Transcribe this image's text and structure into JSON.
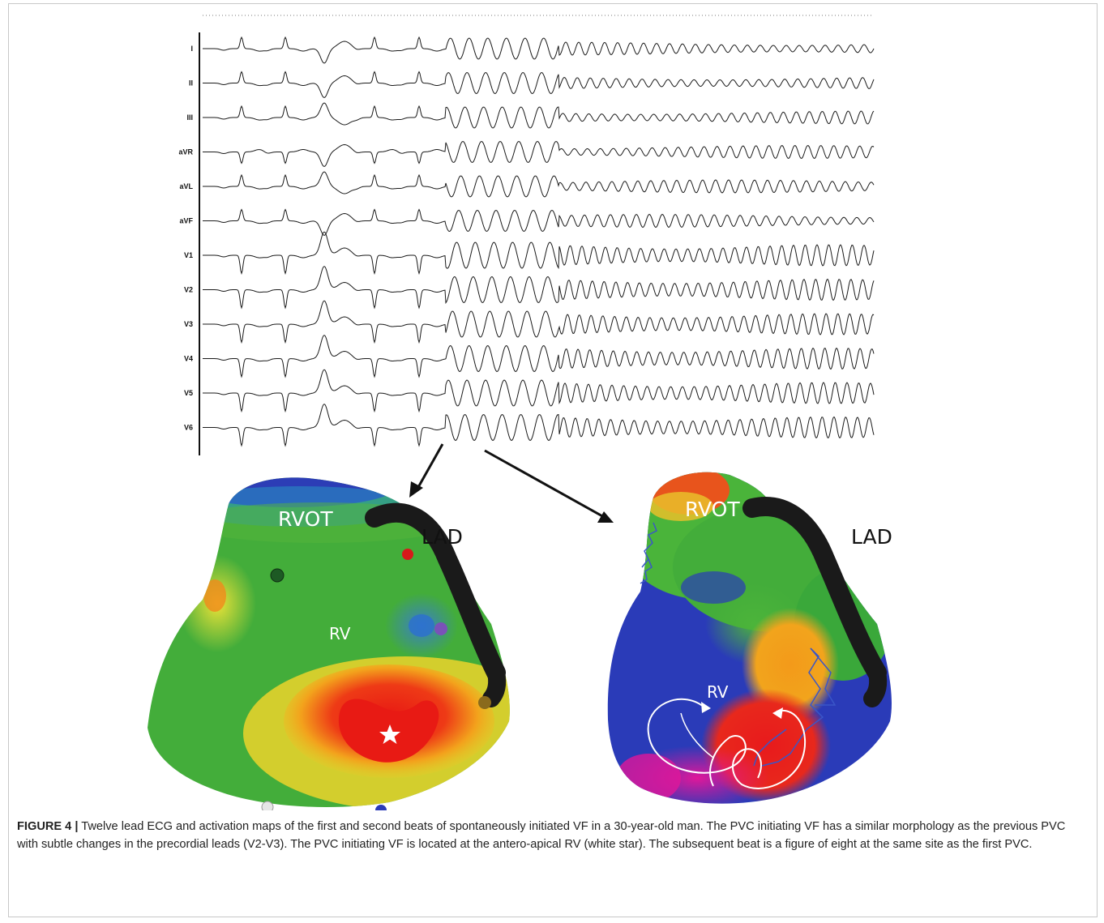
{
  "figure": {
    "caption_label": "FIGURE 4 |",
    "caption_text": " Twelve lead ECG and activation maps of the first and second beats of spontaneously initiated VF in a 30-year-old man. The PVC initiating VF has a similar morphology as the previous PVC with subtle changes in the precordial leads (V2-V3). The PVC initiating VF is located at the antero-apical RV (white star). The subsequent beat is a figure of eight at the same site as the first PVC."
  },
  "ecg": {
    "leads": [
      "I",
      "II",
      "III",
      "aVR",
      "aVL",
      "aVF",
      "V1",
      "V2",
      "V3",
      "V4",
      "V5",
      "V6"
    ]
  },
  "maps": {
    "left": {
      "rvot": "RVOT",
      "lad": "LAD",
      "rv": "RV"
    },
    "right": {
      "rvot": "RVOT",
      "lad": "LAD",
      "rv": "RV"
    }
  },
  "colors": {
    "green": "#3aa83a",
    "blue": "#2a3bb8",
    "red": "#e8201c",
    "yellow": "#e3d42a",
    "orange": "#f39a1a",
    "magenta": "#e0179a",
    "lad_vessel": "#1a1a1a"
  }
}
